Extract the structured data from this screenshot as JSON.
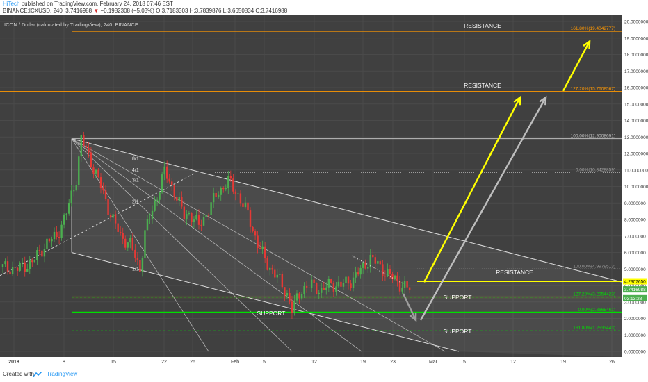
{
  "header": {
    "publisher": "HiTech",
    "published_text": "published on TradingView.com, February 24, 2018 07:46 EST",
    "symbol_line_prefix": "BINANCE:ICXUSD, 240",
    "price": "3.7416988",
    "change": "−0.1982308 (−5.03%)",
    "ohlc": "O:3.7183303 H:3.7839876 L:3.6650834 C:3.7416988"
  },
  "footer": {
    "created_with": "Created with",
    "brand": "TradingView"
  },
  "chart_data": {
    "type": "candlestick",
    "title": "ICON / Dollar (calculated by TradingView), 240, BINANCE",
    "colors": {
      "up": "#4caf50",
      "down": "#e53935",
      "background": "#404040",
      "fib": "#ff9800",
      "arrow_yellow": "#ffff00",
      "arrow_gray": "#9e9e9e",
      "support": "#00e000"
    },
    "price_axis_labels": [
      "20.0000000",
      "19.0000000",
      "18.0000000",
      "17.0000000",
      "16.0000000",
      "15.0000000",
      "14.0000000",
      "13.0000000",
      "12.0000000",
      "11.0000000",
      "10.0000000",
      "9.0000000",
      "8.0000000",
      "7.0000000",
      "6.0000000",
      "5.0000000",
      "4.0000000",
      "3.0000000",
      "2.0000000",
      "1.0000000",
      "0.0000000"
    ],
    "ylim": [
      0,
      20
    ],
    "time_axis_labels": [
      "2018",
      "8",
      "15",
      "22",
      "26",
      "Feb",
      "5",
      "12",
      "19",
      "23",
      "Mar",
      "5",
      "12",
      "19",
      "26"
    ],
    "price_path": [
      [
        0,
        5.1
      ],
      [
        3,
        5.0
      ],
      [
        6,
        5.4
      ],
      [
        9,
        6.6
      ],
      [
        11,
        7.0
      ],
      [
        13,
        8.4
      ],
      [
        15,
        10.5
      ],
      [
        16,
        12.9
      ],
      [
        18,
        11.5
      ],
      [
        20,
        10.0
      ],
      [
        22,
        8.3
      ],
      [
        24,
        7.0
      ],
      [
        26,
        6.5
      ],
      [
        28,
        5.0
      ],
      [
        29,
        7.2
      ],
      [
        31,
        9.0
      ],
      [
        33,
        10.9
      ],
      [
        35,
        9.7
      ],
      [
        37,
        8.2
      ],
      [
        38,
        8.4
      ],
      [
        40,
        7.6
      ],
      [
        42,
        8.6
      ],
      [
        44,
        9.7
      ],
      [
        46,
        10.3
      ],
      [
        48,
        9.5
      ],
      [
        50,
        8.3
      ],
      [
        52,
        6.5
      ],
      [
        54,
        5.3
      ],
      [
        56,
        4.5
      ],
      [
        58,
        3.5
      ],
      [
        59,
        2.5
      ],
      [
        61,
        3.8
      ],
      [
        63,
        4.0
      ],
      [
        65,
        3.7
      ],
      [
        67,
        4.1
      ],
      [
        69,
        4.0
      ],
      [
        71,
        4.3
      ],
      [
        73,
        4.9
      ],
      [
        75,
        5.7
      ],
      [
        77,
        5.1
      ],
      [
        79,
        4.6
      ],
      [
        81,
        4.1
      ],
      [
        83,
        3.75
      ]
    ],
    "levels": [
      {
        "label": "RESISTANCE",
        "price": 19.404,
        "fib_label": "161.80%(19.4042777)",
        "color": "#ff9800"
      },
      {
        "label": "RESISTANCE",
        "price": 15.7608,
        "fib_label": "127.20%(15.7608567)",
        "color": "#ff9800"
      },
      {
        "label": "",
        "price": 12.9,
        "fib_label": "100.00%(12.9008691)",
        "color": "#bdbdbd"
      },
      {
        "label": "",
        "price": 10.84,
        "fib_label": "0.00%(10.8428859)",
        "color": "#9e9e9e"
      },
      {
        "label": "",
        "price": 5.0,
        "fib_label": "100.00%(4.9979513)",
        "color": "#9e9e9e"
      },
      {
        "label": "RESISTANCE",
        "price": 4.2307,
        "fib_label": "",
        "color": "#ffff00"
      },
      {
        "label": "SUPPORT",
        "price": 3.2954,
        "fib_label": "127.20%(3.2954423)",
        "color": "#00e000"
      },
      {
        "label": "SUPPORT",
        "price": 2.3665,
        "fib_label": "0.00%(2.3665461)",
        "color": "#00e000"
      },
      {
        "label": "SUPPORT",
        "price": 1.2533,
        "fib_label": "161.80%(1.2533443)",
        "color": "#00e000"
      }
    ],
    "price_tags": [
      "4.2307650",
      "3.7416988",
      "03:13:28"
    ],
    "fan_labels": [
      "8/1",
      "4/1",
      "3/1",
      "2/1",
      "1/1"
    ],
    "support_label_low": "SUPPORT"
  }
}
